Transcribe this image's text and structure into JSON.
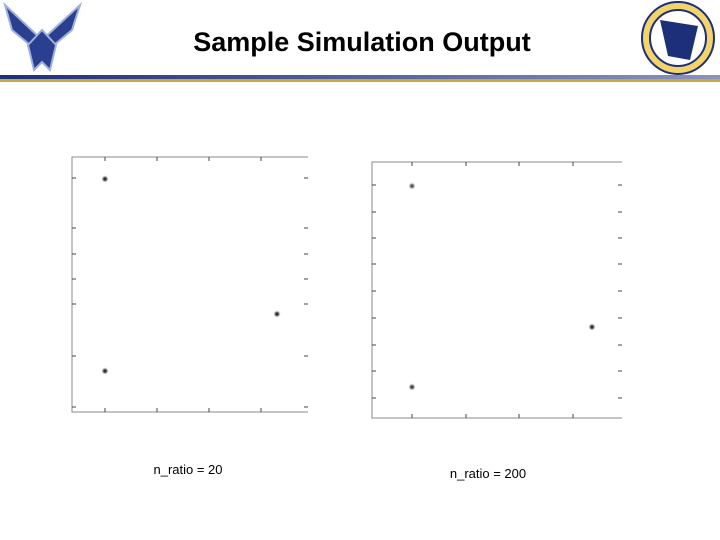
{
  "header": {
    "title": "Sample Simulation Output"
  },
  "plots": [
    {
      "caption": "n_ratio = 20"
    },
    {
      "caption": "n_ratio = 200"
    }
  ]
}
